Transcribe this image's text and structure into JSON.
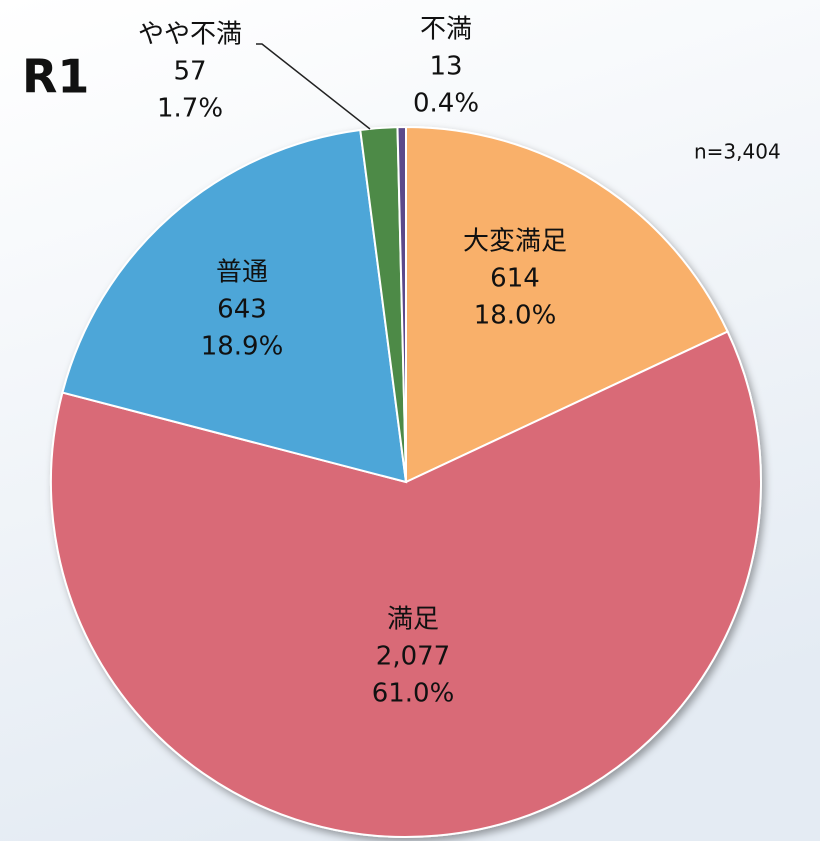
{
  "chart_data": {
    "type": "pie",
    "title": "R1",
    "annotation": "n=3,404",
    "categories": [
      "大変満足",
      "満足",
      "普通",
      "やや不満",
      "不満"
    ],
    "values": [
      614,
      2077,
      643,
      57,
      13
    ],
    "value_labels": [
      "614",
      "2,077",
      "643",
      "57",
      "13"
    ],
    "percent_labels": [
      "18.0%",
      "61.0%",
      "18.9%",
      "1.7%",
      "0.4%"
    ],
    "colors": [
      "#f9b06b",
      "#d96b77",
      "#4ea6d8",
      "#4e8a47",
      "#5b4a8a"
    ]
  }
}
